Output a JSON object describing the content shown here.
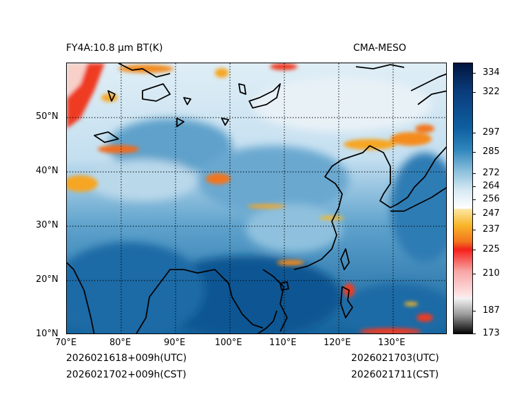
{
  "header": {
    "product_title": "FY4A:10.8 µm BT(K)",
    "source": "CMA-MESO"
  },
  "map": {
    "lat_labels": [
      "50°N",
      "40°N",
      "30°N",
      "20°N",
      "10°N"
    ],
    "lon_labels": [
      "70°E",
      "80°E",
      "90°E",
      "100°E",
      "110°E",
      "120°E",
      "130°E"
    ],
    "lat_range": [
      10,
      60
    ],
    "lon_range": [
      70,
      140
    ],
    "gridline_style": "dotted"
  },
  "colorbar": {
    "unit": "K",
    "range": [
      173,
      340
    ],
    "ticks": [
      "334",
      "322",
      "297",
      "285",
      "272",
      "264",
      "256",
      "247",
      "237",
      "225",
      "210",
      "187",
      "173"
    ]
  },
  "footer": {
    "init_utc": "2026021618+009h(UTC)",
    "init_cst": "2026021702+009h(CST)",
    "valid_utc": "2026021703(UTC)",
    "valid_cst": "2026021711(CST)"
  }
}
